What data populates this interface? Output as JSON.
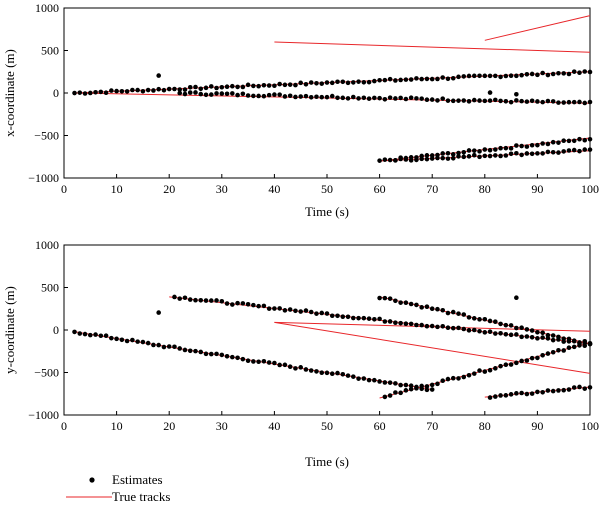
{
  "chart_data": [
    {
      "type": "scatter",
      "xlabel": "Time (s)",
      "ylabel": "x-coordinate (m)",
      "xlim": [
        0,
        100
      ],
      "ylim": [
        -1000,
        1000
      ],
      "xticks": [
        "0",
        "10",
        "20",
        "30",
        "40",
        "50",
        "60",
        "70",
        "80",
        "90",
        "100"
      ],
      "yticks": [
        "−1000",
        "−500",
        "0",
        "500",
        "1000"
      ],
      "xtick_values": [
        0,
        10,
        20,
        30,
        40,
        50,
        60,
        70,
        80,
        90,
        100
      ],
      "ytick_values": [
        -1000,
        -500,
        0,
        500,
        1000
      ],
      "true_tracks": [
        {
          "t": [
            2,
            100
          ],
          "v": [
            0,
            250
          ]
        },
        {
          "t": [
            2,
            100
          ],
          "v": [
            0,
            -120
          ]
        },
        {
          "t": [
            40,
            100
          ],
          "v": [
            600,
            480
          ]
        },
        {
          "t": [
            60,
            100
          ],
          "v": [
            -800,
            -530
          ]
        },
        {
          "t": [
            60,
            100
          ],
          "v": [
            -800,
            -680
          ]
        },
        {
          "t": [
            80,
            100
          ],
          "v": [
            620,
            910
          ]
        }
      ],
      "estimate_tracks": [
        {
          "t0": 2,
          "t1": 100,
          "v0": 0,
          "v1": 245,
          "dt": 1
        },
        {
          "t0": 22,
          "t1": 100,
          "v0": 0,
          "v1": -120,
          "dt": 1
        },
        {
          "t0": 60,
          "t1": 100,
          "v0": -800,
          "v1": -540,
          "dt": 1
        },
        {
          "t0": 63,
          "t1": 100,
          "v0": -790,
          "v1": -675,
          "dt": 1
        }
      ],
      "outliers": [
        [
          18,
          205
        ],
        [
          81,
          5
        ],
        [
          86,
          -15
        ]
      ]
    },
    {
      "type": "scatter",
      "xlabel": "Time (s)",
      "ylabel": "y-coordinate (m)",
      "xlim": [
        0,
        100
      ],
      "ylim": [
        -1000,
        1000
      ],
      "xticks": [
        "0",
        "10",
        "20",
        "30",
        "40",
        "50",
        "60",
        "70",
        "80",
        "90",
        "100"
      ],
      "yticks": [
        "−1000",
        "−500",
        "0",
        "500",
        "1000"
      ],
      "xtick_values": [
        0,
        10,
        20,
        30,
        40,
        50,
        60,
        70,
        80,
        90,
        100
      ],
      "ytick_values": [
        -1000,
        -500,
        0,
        500,
        1000
      ],
      "true_tracks": [
        {
          "t": [
            2,
            70
          ],
          "v": [
            -20,
            -700
          ]
        },
        {
          "t": [
            20,
            100
          ],
          "v": [
            390,
            -160
          ]
        },
        {
          "t": [
            60,
            100
          ],
          "v": [
            390,
            -160
          ]
        },
        {
          "t": [
            40,
            100
          ],
          "v": [
            90,
            -15
          ]
        },
        {
          "t": [
            40,
            100
          ],
          "v": [
            90,
            -510
          ]
        },
        {
          "t": [
            60,
            100
          ],
          "v": [
            -800,
            -150
          ]
        },
        {
          "t": [
            80,
            100
          ],
          "v": [
            -790,
            -670
          ]
        }
      ],
      "estimate_tracks": [
        {
          "t0": 2,
          "t1": 70,
          "v0": -20,
          "v1": -700,
          "dt": 1
        },
        {
          "t0": 21,
          "t1": 100,
          "v0": 390,
          "v1": -160,
          "dt": 1
        },
        {
          "t0": 60,
          "t1": 100,
          "v0": 390,
          "v1": -160,
          "dt": 1
        },
        {
          "t0": 61,
          "t1": 100,
          "v0": -780,
          "v1": -155,
          "dt": 1
        },
        {
          "t0": 81,
          "t1": 100,
          "v0": -790,
          "v1": -670,
          "dt": 1
        }
      ],
      "outliers": [
        [
          18,
          205
        ],
        [
          86,
          380
        ]
      ]
    }
  ],
  "legend": {
    "estimates_label": "Estimates",
    "true_tracks_label": "True tracks",
    "placement": "bottom-left"
  },
  "colors": {
    "estimates": "#000000",
    "true_tracks": "#e8262a"
  }
}
